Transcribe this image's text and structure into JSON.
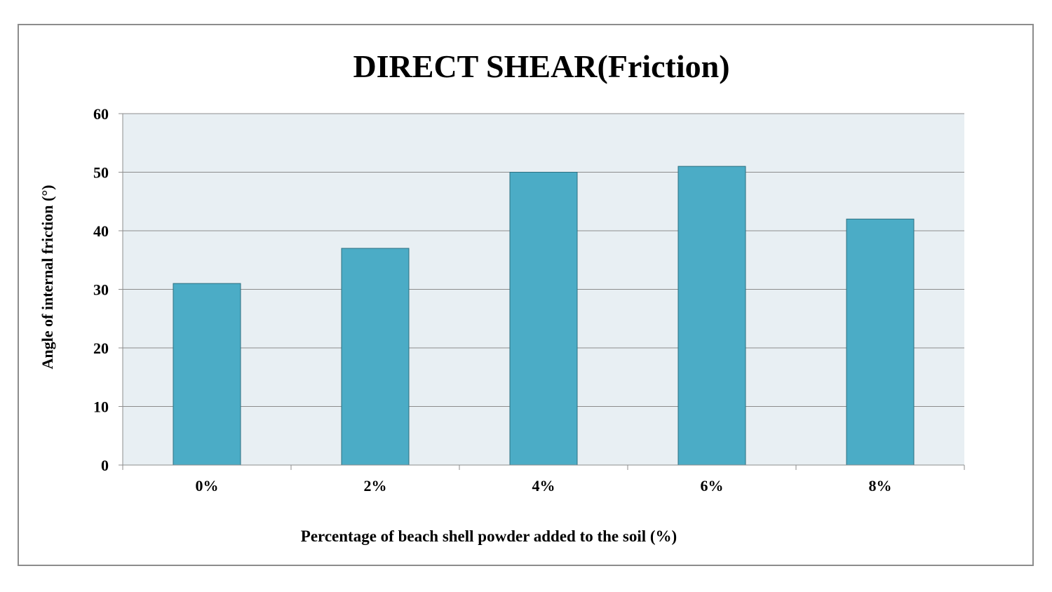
{
  "chart_data": {
    "type": "bar",
    "title": "DIRECT SHEAR(Friction)",
    "xlabel": "Percentage of beach shell powder added to the soil (%)",
    "ylabel": "Angle of internal friction (°)",
    "categories": [
      "0%",
      "2%",
      "4%",
      "6%",
      "8%"
    ],
    "values": [
      31,
      37,
      50,
      51,
      42
    ],
    "ylim": [
      0,
      60
    ],
    "yticks": [
      0,
      10,
      20,
      30,
      40,
      50,
      60
    ],
    "grid": true,
    "legend": "none",
    "colors": {
      "bar_fill": "#4bacc6",
      "bar_stroke": "#2c6f80",
      "plot_background": "#e8eff3",
      "gridline": "#8c8c8c",
      "frame_border": "#8c8c8c"
    }
  }
}
